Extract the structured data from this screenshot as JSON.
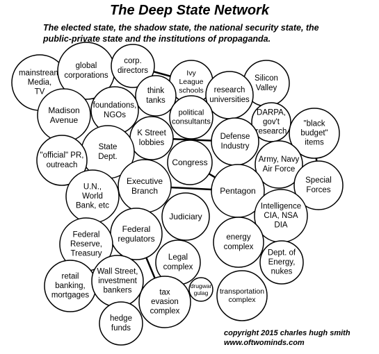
{
  "title": "The Deep State Network",
  "subtitle": {
    "line1": "The elected state, the shadow state, the national security state, the",
    "line2": "public-private state and the institutions of propaganda."
  },
  "copyright": {
    "line1": "copyright 2015 charles hugh smith",
    "line2": "www.oftwominds.com"
  },
  "nodes": [
    {
      "id": "mainstream-media",
      "lines": [
        "mainstream",
        "Media,",
        "TV"
      ]
    },
    {
      "id": "global-corporations",
      "lines": [
        "global",
        "corporations"
      ]
    },
    {
      "id": "corp-directors",
      "lines": [
        "corp.",
        "directors"
      ]
    },
    {
      "id": "ivy-league-schools",
      "lines": [
        "Ivy",
        "League",
        "schools"
      ]
    },
    {
      "id": "silicon-valley",
      "lines": [
        "Silicon",
        "Valley"
      ]
    },
    {
      "id": "think-tanks",
      "lines": [
        "think",
        "tanks"
      ]
    },
    {
      "id": "research-universities",
      "lines": [
        "research",
        "universities"
      ]
    },
    {
      "id": "madison-avenue",
      "lines": [
        "Madison",
        "Avenue"
      ]
    },
    {
      "id": "foundations-ngos",
      "lines": [
        "foundations,",
        "NGOs"
      ]
    },
    {
      "id": "political-consultants",
      "lines": [
        "political",
        "consultants"
      ]
    },
    {
      "id": "darpa-govt-research",
      "lines": [
        "DARPA,",
        "gov't",
        "research"
      ]
    },
    {
      "id": "black-budget-items",
      "lines": [
        "\"black",
        "budget\"",
        "items"
      ]
    },
    {
      "id": "k-street-lobbies",
      "lines": [
        "K Street",
        "lobbies"
      ]
    },
    {
      "id": "defense-industry",
      "lines": [
        "Defense",
        "Industry"
      ]
    },
    {
      "id": "state-dept",
      "lines": [
        "State",
        "Dept."
      ]
    },
    {
      "id": "official-pr-outreach",
      "lines": [
        "\"official\" PR,",
        "outreach"
      ]
    },
    {
      "id": "congress",
      "lines": [
        "Congress"
      ]
    },
    {
      "id": "army-navy-air-force",
      "lines": [
        "Army, Navy",
        "Air Force"
      ]
    },
    {
      "id": "special-forces",
      "lines": [
        "Special",
        "Forces"
      ]
    },
    {
      "id": "executive-branch",
      "lines": [
        "Executive",
        "Branch"
      ]
    },
    {
      "id": "un-world-bank",
      "lines": [
        "U.N.,",
        "World",
        "Bank, etc"
      ]
    },
    {
      "id": "pentagon",
      "lines": [
        "Pentagon"
      ]
    },
    {
      "id": "judiciary",
      "lines": [
        "Judiciary"
      ]
    },
    {
      "id": "intelligence-cia-nsa-dia",
      "lines": [
        "Intelligence",
        "CIA, NSA",
        "DIA"
      ]
    },
    {
      "id": "federal-regulators",
      "lines": [
        "Federal",
        "regulators"
      ]
    },
    {
      "id": "federal-reserve-treasury",
      "lines": [
        "Federal",
        "Reserve,",
        "Treasury"
      ]
    },
    {
      "id": "energy-complex",
      "lines": [
        "energy",
        "complex"
      ]
    },
    {
      "id": "legal-complex",
      "lines": [
        "Legal",
        "complex"
      ]
    },
    {
      "id": "dept-of-energy-nukes",
      "lines": [
        "Dept. of",
        "Energy,",
        "nukes"
      ]
    },
    {
      "id": "retail-banking-mortgages",
      "lines": [
        "retail",
        "banking,",
        "mortgages"
      ]
    },
    {
      "id": "wall-street-investment-bankers",
      "lines": [
        "Wall Street,",
        "investment",
        "bankers"
      ]
    },
    {
      "id": "drugwar-gulag",
      "lines": [
        "drugwar",
        "gulag"
      ]
    },
    {
      "id": "tax-evasion-complex",
      "lines": [
        "tax",
        "evasion",
        "complex"
      ]
    },
    {
      "id": "transportation-complex",
      "lines": [
        "transportation",
        "complex"
      ]
    },
    {
      "id": "hedge-funds",
      "lines": [
        "hedge",
        "funds"
      ]
    }
  ],
  "connections": [
    [
      "global-corporations",
      "corp-directors"
    ],
    [
      "corp-directors",
      "ivy-league-schools"
    ],
    [
      "global-corporations",
      "state-dept"
    ],
    [
      "ivy-league-schools",
      "political-consultants"
    ],
    [
      "research-universities",
      "defense-industry"
    ],
    [
      "k-street-lobbies",
      "defense-industry"
    ],
    [
      "defense-industry",
      "darpa-govt-research"
    ],
    [
      "congress",
      "pentagon"
    ],
    [
      "executive-branch",
      "pentagon"
    ],
    [
      "pentagon",
      "army-navy-air-force"
    ],
    [
      "pentagon",
      "intelligence-cia-nsa-dia"
    ],
    [
      "black-budget-items",
      "special-forces"
    ],
    [
      "federal-reserve-treasury",
      "wall-street-investment-bankers"
    ],
    [
      "federal-regulators",
      "tax-evasion-complex"
    ]
  ]
}
